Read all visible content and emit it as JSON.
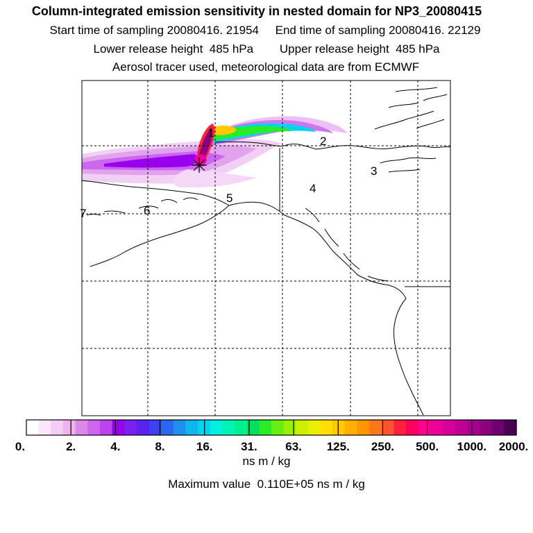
{
  "header": {
    "title": "Column-integrated emission sensitivity in nested domain for NP3_20080415",
    "sampling": "Start time of sampling 20080416. 21954     End time of sampling 20080416. 22129",
    "release": "Lower release height  485 hPa        Upper release height  485 hPa",
    "info": "Aerosol tracer used, meteorological data are from ECMWF"
  },
  "map": {
    "labels": [
      "1",
      "2",
      "3",
      "4",
      "5",
      "6",
      "7"
    ],
    "release_marker": "release-point-asterisk"
  },
  "colorbar": {
    "ticks": [
      "0.",
      "2.",
      "4.",
      "8.",
      "16.",
      "31.",
      "63.",
      "125.",
      "250.",
      "500.",
      "1000.",
      "2000."
    ],
    "colors": [
      "#ffffff",
      "#fbe6fb",
      "#f5ccf5",
      "#efb3ef",
      "#d98ae8",
      "#cc66ee",
      "#bb44f0",
      "#9900ee",
      "#7722f0",
      "#5a22ee",
      "#3f3ff5",
      "#2a66f5",
      "#1f8fef",
      "#10b5f0",
      "#00d5f0",
      "#00f0e0",
      "#00f5b5",
      "#00f090",
      "#00e060",
      "#28ec28",
      "#66ef10",
      "#99f000",
      "#ccf000",
      "#eaef00",
      "#ffe000",
      "#ffc800",
      "#ffb000",
      "#ff9800",
      "#ff7818",
      "#ff5030",
      "#ff2040",
      "#ff0060",
      "#ff0090",
      "#ee0099",
      "#d80099",
      "#c00095",
      "#a8008e",
      "#8c0080",
      "#700070",
      "#4a0050"
    ],
    "units": "ns m / kg",
    "max_value": "Maximum value  0.110E+05 ns m / kg"
  }
}
